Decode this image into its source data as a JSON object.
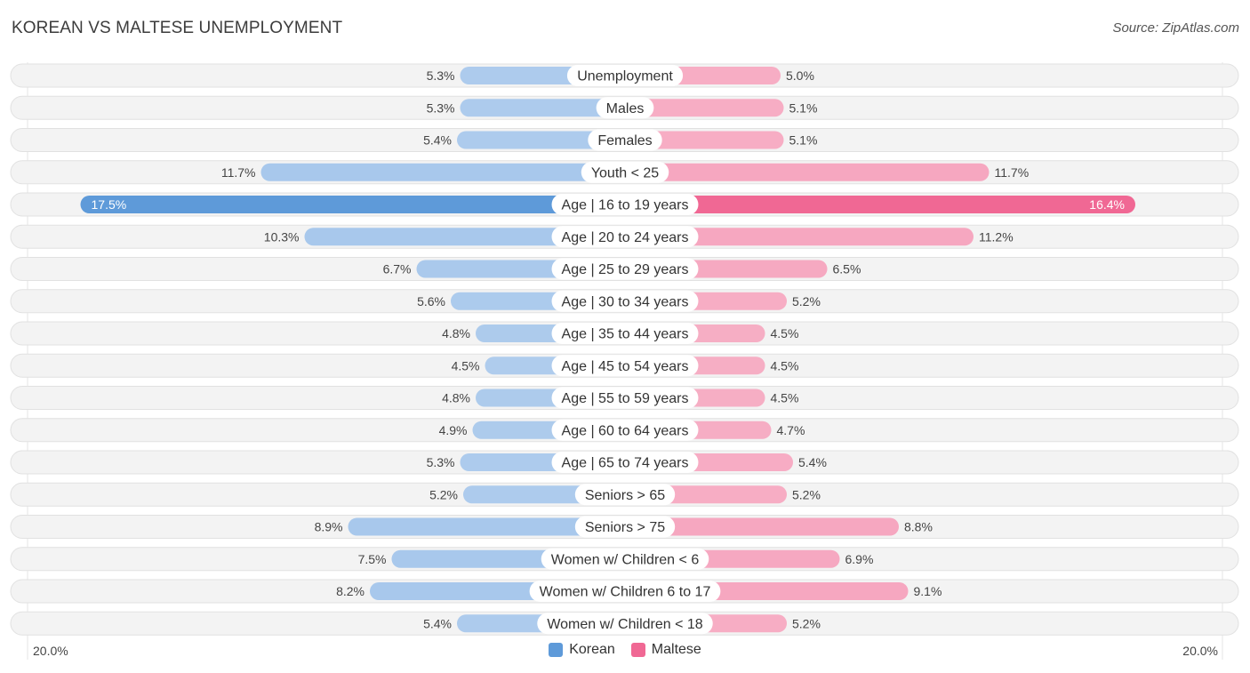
{
  "title": "KOREAN VS MALTESE UNEMPLOYMENT",
  "source": "Source: ZipAtlas.com",
  "chart_data": {
    "type": "bar",
    "orientation": "diverging-horizontal",
    "title": "KOREAN VS MALTESE UNEMPLOYMENT",
    "xlim": [
      -20,
      20
    ],
    "axis_labels": {
      "left": "20.0%",
      "right": "20.0%"
    },
    "categories": [
      "Unemployment",
      "Males",
      "Females",
      "Youth < 25",
      "Age | 16 to 19 years",
      "Age | 20 to 24 years",
      "Age | 25 to 29 years",
      "Age | 30 to 34 years",
      "Age | 35 to 44 years",
      "Age | 45 to 54 years",
      "Age | 55 to 59 years",
      "Age | 60 to 64 years",
      "Age | 65 to 74 years",
      "Seniors > 65",
      "Seniors > 75",
      "Women w/ Children < 6",
      "Women w/ Children 6 to 17",
      "Women w/ Children < 18"
    ],
    "series": [
      {
        "name": "Korean",
        "color": "#5e9ad9",
        "light_color": "#a8c8ec",
        "values": [
          5.3,
          5.3,
          5.4,
          11.7,
          17.5,
          10.3,
          6.7,
          5.6,
          4.8,
          4.5,
          4.8,
          4.9,
          5.3,
          5.2,
          8.9,
          7.5,
          8.2,
          5.4
        ],
        "labels": [
          "5.3%",
          "5.3%",
          "5.4%",
          "11.7%",
          "17.5%",
          "10.3%",
          "6.7%",
          "5.6%",
          "4.8%",
          "4.5%",
          "4.8%",
          "4.9%",
          "5.3%",
          "5.2%",
          "8.9%",
          "7.5%",
          "8.2%",
          "5.4%"
        ]
      },
      {
        "name": "Maltese",
        "color": "#f06894",
        "light_color": "#f6a7c0",
        "values": [
          5.0,
          5.1,
          5.1,
          11.7,
          16.4,
          11.2,
          6.5,
          5.2,
          4.5,
          4.5,
          4.5,
          4.7,
          5.4,
          5.2,
          8.8,
          6.9,
          9.1,
          5.2
        ],
        "labels": [
          "5.0%",
          "5.1%",
          "5.1%",
          "11.7%",
          "16.4%",
          "11.2%",
          "6.5%",
          "5.2%",
          "4.5%",
          "4.5%",
          "4.5%",
          "4.7%",
          "5.4%",
          "5.2%",
          "8.8%",
          "6.9%",
          "9.1%",
          "5.2%"
        ]
      }
    ],
    "legend": [
      "Korean",
      "Maltese"
    ],
    "legend_position": "bottom-center"
  }
}
